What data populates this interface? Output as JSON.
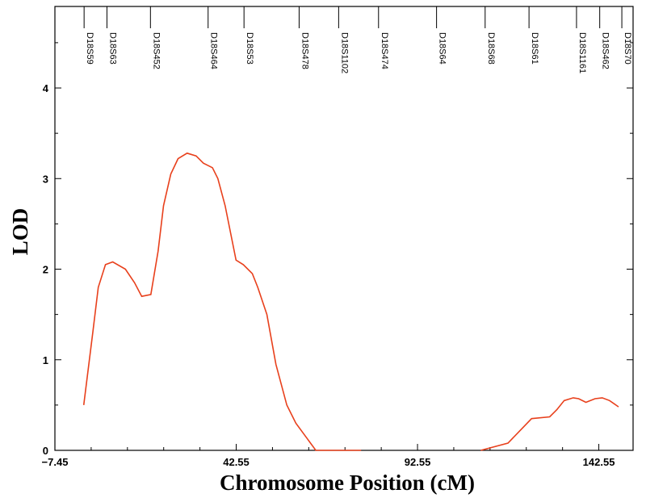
{
  "chart_data": {
    "type": "line",
    "title": "",
    "xlabel": "Chromosome Position (cM)",
    "ylabel": "LOD",
    "xlim": [
      -7.45,
      152
    ],
    "ylim": [
      0,
      4.9
    ],
    "x_ticks": [
      -7.45,
      42.55,
      92.55,
      142.55
    ],
    "x_tick_labels": [
      "−7.45",
      "42.55",
      "92.55",
      "142.55"
    ],
    "y_ticks": [
      0,
      1,
      2,
      3,
      4
    ],
    "y_tick_labels": [
      "0",
      "1",
      "2",
      "3",
      "4"
    ],
    "grid": false,
    "series": [
      {
        "color": "#e8401c",
        "x": [
          0.5,
          3,
          4.5,
          6.5,
          8.5,
          12,
          14.5,
          16.5,
          19,
          21,
          22.5,
          24.5,
          26.5,
          29,
          31.5,
          33.5,
          36,
          37.5,
          39.5,
          42.5,
          44.5,
          47,
          48.5,
          51,
          53.5,
          56.5,
          59,
          64.5,
          71.5,
          77
        ],
        "y": [
          0.5,
          1.3,
          1.8,
          2.05,
          2.08,
          2.0,
          1.85,
          1.7,
          1.72,
          2.2,
          2.7,
          3.05,
          3.22,
          3.28,
          3.25,
          3.17,
          3.12,
          3.0,
          2.7,
          2.1,
          2.05,
          1.95,
          1.8,
          1.5,
          0.95,
          0.5,
          0.3,
          0.0,
          0.0,
          0.0
        ]
      },
      {
        "color": "#e8401c",
        "x": [
          110,
          117.5,
          124,
          129,
          131,
          133,
          135.5,
          137,
          139,
          141.5,
          143.5,
          145.5,
          148
        ],
        "y": [
          0.0,
          0.08,
          0.35,
          0.37,
          0.45,
          0.55,
          0.58,
          0.57,
          0.53,
          0.57,
          0.58,
          0.55,
          0.48
        ]
      }
    ],
    "markers": [
      {
        "name": "D18S59",
        "x": 0.6
      },
      {
        "name": "D18S63",
        "x": 6.9
      },
      {
        "name": "D18S452",
        "x": 18.9
      },
      {
        "name": "D18S464",
        "x": 34.8
      },
      {
        "name": "D18S53",
        "x": 44.7
      },
      {
        "name": "D18S478",
        "x": 59.9
      },
      {
        "name": "D18S1102",
        "x": 70.8
      },
      {
        "name": "D18S474",
        "x": 81.8
      },
      {
        "name": "D18S64",
        "x": 97.8
      },
      {
        "name": "D18S68",
        "x": 111.2
      },
      {
        "name": "D18S61",
        "x": 123.3
      },
      {
        "name": "D18S1161",
        "x": 136.4
      },
      {
        "name": "D18S462",
        "x": 142.8
      },
      {
        "name": "D18S70",
        "x": 148.9
      }
    ]
  }
}
